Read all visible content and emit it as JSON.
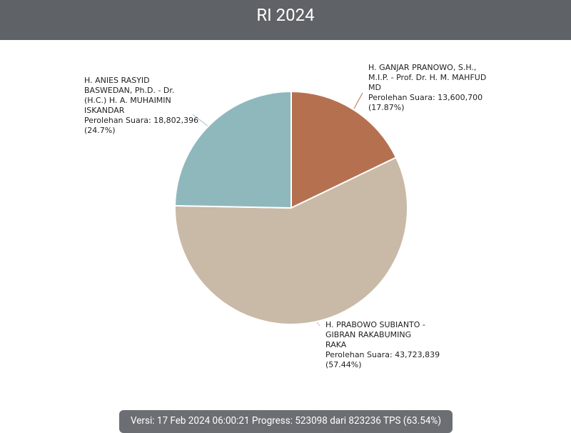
{
  "chart_data": {
    "type": "pie",
    "title": "RI 2024",
    "categories": [
      "H. GANJAR PRANOWO, S.H., M.I.P. - Prof. Dr. H. M. MAHFUD MD",
      "H. PRABOWO SUBIANTO - GIBRAN RAKABUMING RAKA",
      "H. ANIES RASYID BASWEDAN, Ph.D. - Dr. (H.C.) H. A. MUHAIMIN ISKANDAR"
    ],
    "values": [
      17.87,
      57.44,
      24.7
    ],
    "value_labels": [
      "(17.87%)",
      "(57.44%)",
      "(24.7%)"
    ],
    "vote_labels": [
      "Perolehan Suara: 13,600,700",
      "Perolehan Suara: 43,723,839",
      "Perolehan Suara: 18,802,396"
    ],
    "colors": [
      "#b5714f",
      "#c9b9a7",
      "#8fb8bd"
    ]
  },
  "footer": "Versi: 17 Feb 2024 06:00:21 Progress: 523098 dari 823236 TPS (63.54%)"
}
